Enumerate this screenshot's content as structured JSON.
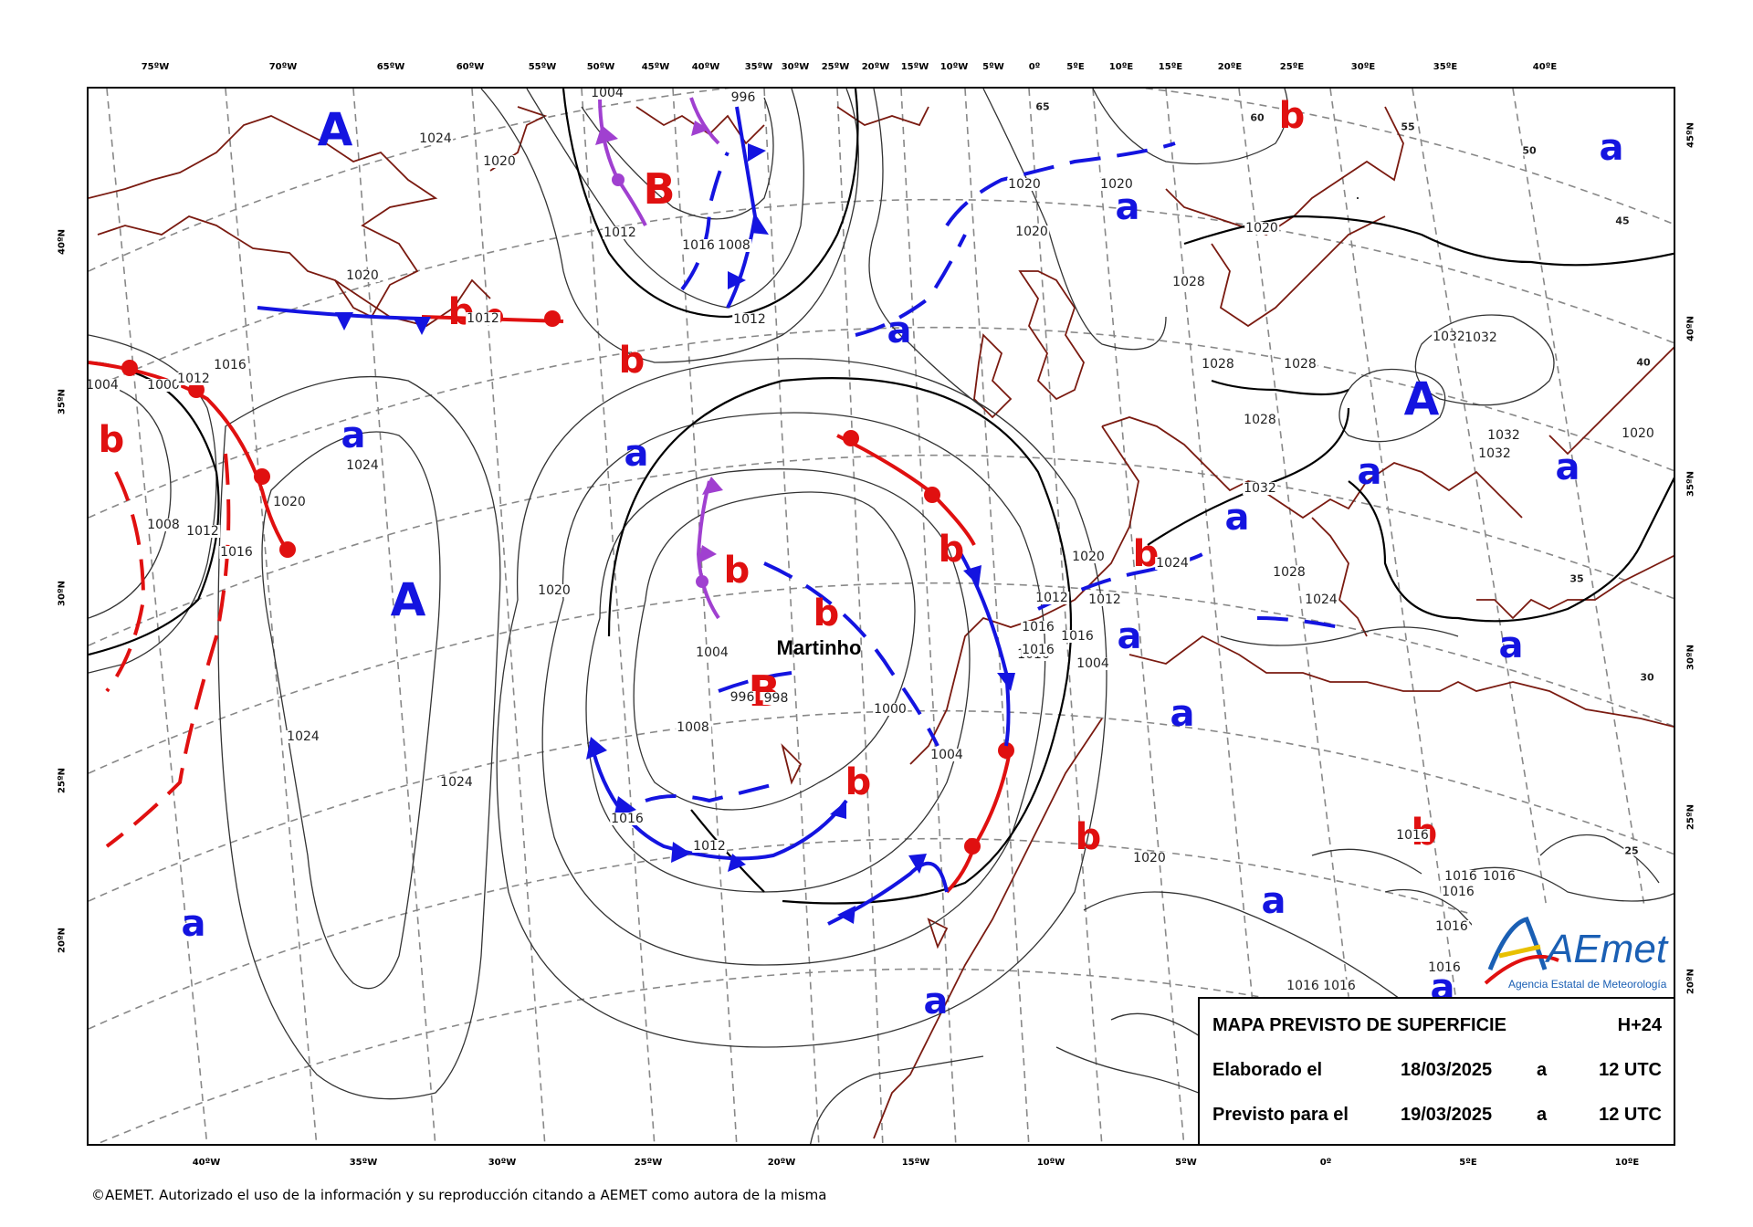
{
  "axis_labels": {
    "top": [
      "75ºW",
      "70ºW",
      "65ºW",
      "60ºW",
      "55ºW",
      "50ºW",
      "45ºW",
      "40ºW",
      "35ºW",
      "30ºW",
      "25ºW",
      "20ºW",
      "15ºW",
      "10ºW",
      "5ºW",
      "0º",
      "5ºE",
      "10ºE",
      "15ºE",
      "20ºE",
      "25ºE",
      "30ºE",
      "35ºE",
      "40ºE"
    ],
    "bottom": [
      "40ºW",
      "35ºW",
      "30ºW",
      "25ºW",
      "20ºW",
      "15ºW",
      "10ºW",
      "5ºW",
      "0º",
      "5ºE",
      "10ºE"
    ],
    "left": [
      "40ºN",
      "35ºN",
      "30ºN",
      "25ºN",
      "20ºN"
    ],
    "right": [
      "45ºN",
      "40ºN",
      "35ºN",
      "30ºN",
      "25ºN",
      "20ºN"
    ]
  },
  "pressure_centers": [
    {
      "label": "A",
      "type": "high"
    },
    {
      "label": "A",
      "type": "high"
    },
    {
      "label": "A",
      "type": "high"
    },
    {
      "label": "B",
      "type": "low"
    },
    {
      "label": "B",
      "type": "low"
    },
    {
      "label": "a",
      "type": "weak-high"
    },
    {
      "label": "a",
      "type": "weak-high"
    },
    {
      "label": "a",
      "type": "weak-high"
    },
    {
      "label": "a",
      "type": "weak-high"
    },
    {
      "label": "a",
      "type": "weak-high"
    },
    {
      "label": "a",
      "type": "weak-high"
    },
    {
      "label": "a",
      "type": "weak-high"
    },
    {
      "label": "a",
      "type": "weak-high"
    },
    {
      "label": "a",
      "type": "weak-high"
    },
    {
      "label": "a",
      "type": "weak-high"
    },
    {
      "label": "a",
      "type": "weak-high"
    },
    {
      "label": "a",
      "type": "weak-high"
    },
    {
      "label": "a",
      "type": "weak-high"
    },
    {
      "label": "a",
      "type": "weak-high"
    },
    {
      "label": "a",
      "type": "weak-high"
    },
    {
      "label": "b",
      "type": "weak-low"
    },
    {
      "label": "b",
      "type": "weak-low"
    },
    {
      "label": "b",
      "type": "weak-low"
    },
    {
      "label": "b",
      "type": "weak-low"
    },
    {
      "label": "b",
      "type": "weak-low"
    },
    {
      "label": "b",
      "type": "weak-low"
    },
    {
      "label": "b",
      "type": "weak-low"
    },
    {
      "label": "b",
      "type": "weak-low"
    },
    {
      "label": "b",
      "type": "weak-low"
    },
    {
      "label": "b",
      "type": "weak-low"
    },
    {
      "label": "b",
      "type": "weak-low"
    }
  ],
  "storm_name": "Martinho",
  "isobar_labels": [
    "1024",
    "1020",
    "1020",
    "1004",
    "1000",
    "1012",
    "1016",
    "1008",
    "1012",
    "1012",
    "1016",
    "1020",
    "1012",
    "1016",
    "1004",
    "1008",
    "1012",
    "1016",
    "1020",
    "1024",
    "1020",
    "1024",
    "1024",
    "996",
    "1000",
    "1004",
    "1008",
    "1012",
    "1016",
    "1012",
    "1016",
    "1020",
    "1024",
    "1028",
    "1032",
    "1032",
    "1028",
    "1028",
    "1028",
    "1032",
    "1032",
    "1032",
    "1024",
    "1028",
    "1020",
    "1016",
    "1020",
    "1020",
    "1016",
    "1016",
    "1016",
    "1016",
    "1016",
    "1016",
    "1016",
    "1016",
    "1020",
    "1020",
    "1016",
    "1012",
    "1004",
    "1008",
    "998",
    "1004",
    "996"
  ],
  "contour_values": [
    "65",
    "60",
    "55",
    "50",
    "45",
    "40",
    "35",
    "30",
    "25"
  ],
  "colors": {
    "high_center": "#1414e0",
    "low_center": "#e01010",
    "warm_front": "#e01010",
    "cold_front": "#1414e0",
    "occluded_front": "#a040d0",
    "coastline": "#7a1a10",
    "isobar": "#333333",
    "grid": "#888888"
  },
  "info_box": {
    "title": "MAPA PREVISTO DE SUPERFICIE",
    "forecast_hour": "H+24",
    "row2_label": "Elaborado el",
    "row2_date": "18/03/2025",
    "row2_a": "a",
    "row2_time": "12 UTC",
    "row3_label": "Previsto para el",
    "row3_date": "19/03/2025",
    "row3_a": "a",
    "row3_time": "12 UTC"
  },
  "logo": {
    "name": "AEmet",
    "subtitle": "Agencia Estatal de Meteorología"
  },
  "copyright": "©AEMET. Autorizado el uso de la información y su reproducción citando a AEMET como autora de la misma"
}
